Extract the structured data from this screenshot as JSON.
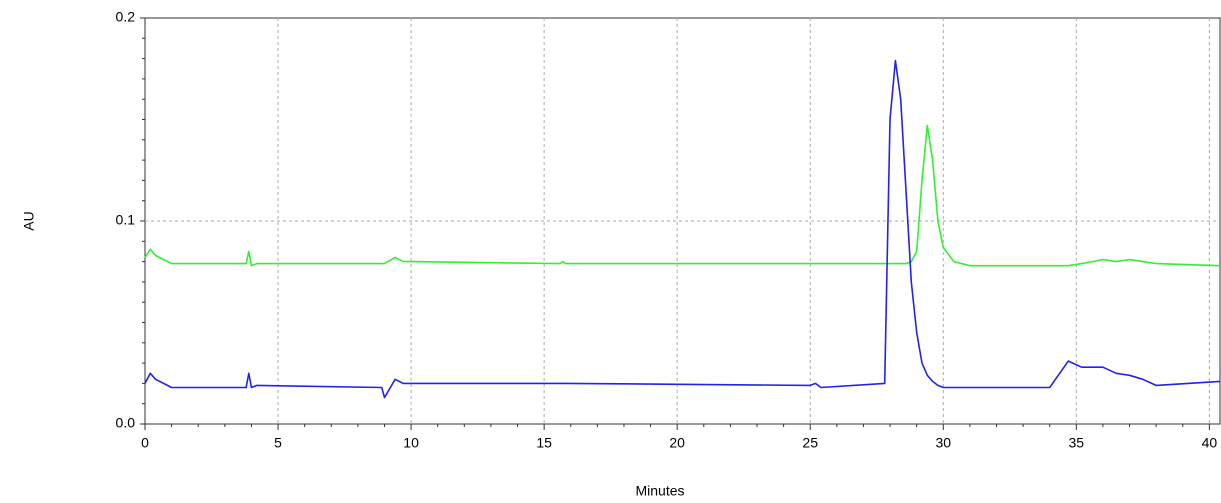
{
  "chart_data": {
    "type": "line",
    "x_label": "Minutes",
    "y_label": "AU",
    "x": [
      0,
      0.2,
      0.4,
      1,
      3.8,
      3.9,
      4.0,
      4.2,
      8.9,
      9.0,
      9.4,
      9.7,
      10,
      15.6,
      15.7,
      15.8,
      25,
      25.2,
      25.4,
      27.8,
      28.0,
      28.2,
      28.4,
      28.6,
      28.8,
      29.0,
      29.2,
      29.4,
      29.6,
      29.8,
      30.0,
      30.4,
      31,
      34,
      34.7,
      35.2,
      36,
      36.5,
      37,
      37.5,
      38,
      40.4
    ],
    "series": [
      {
        "color": "#33ee33",
        "values": [
          0.082,
          0.086,
          0.083,
          0.079,
          0.079,
          0.085,
          0.078,
          0.079,
          0.079,
          0.079,
          0.082,
          0.08,
          0.08,
          0.079,
          0.08,
          0.079,
          0.079,
          0.079,
          0.079,
          0.079,
          0.079,
          0.079,
          0.079,
          0.079,
          0.08,
          0.085,
          0.12,
          0.147,
          0.13,
          0.1,
          0.087,
          0.08,
          0.078,
          0.078,
          0.078,
          0.079,
          0.081,
          0.08,
          0.081,
          0.08,
          0.079,
          0.078
        ]
      },
      {
        "color": "#2222ee",
        "values": [
          0.02,
          0.025,
          0.022,
          0.018,
          0.018,
          0.025,
          0.018,
          0.019,
          0.018,
          0.013,
          0.022,
          0.02,
          0.02,
          0.02,
          0.02,
          0.02,
          0.019,
          0.02,
          0.018,
          0.02,
          0.15,
          0.179,
          0.16,
          0.115,
          0.07,
          0.045,
          0.03,
          0.024,
          0.021,
          0.019,
          0.018,
          0.018,
          0.018,
          0.018,
          0.031,
          0.028,
          0.028,
          0.025,
          0.024,
          0.022,
          0.019,
          0.021
        ]
      }
    ],
    "xlim": [
      0,
      40.4
    ],
    "ylim": [
      0,
      0.2
    ],
    "xticks": [
      0,
      5,
      10,
      15,
      20,
      25,
      30,
      35,
      40
    ],
    "yticks": [
      {
        "value": 0,
        "label": "0.0"
      },
      0.1,
      0.2
    ],
    "grid": true
  }
}
